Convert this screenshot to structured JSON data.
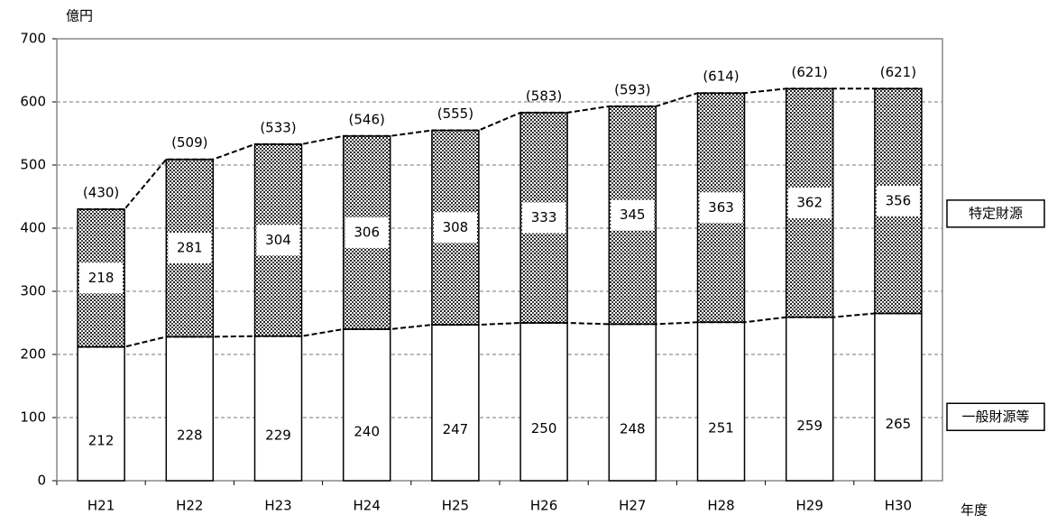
{
  "chart_data": {
    "type": "stacked-bar",
    "y_label": "億円",
    "x_label": "年度",
    "categories": [
      "H21",
      "H22",
      "H23",
      "H24",
      "H25",
      "H26",
      "H27",
      "H28",
      "H29",
      "H30"
    ],
    "series": [
      {
        "name": "一般財源等",
        "color": "#ffffff",
        "values": [
          212,
          228,
          229,
          240,
          247,
          250,
          248,
          251,
          259,
          265
        ]
      },
      {
        "name": "特定財源",
        "color": "#555555",
        "values": [
          218,
          281,
          304,
          306,
          308,
          333,
          345,
          363,
          362,
          356
        ]
      }
    ],
    "totals": {
      "values": [
        430,
        509,
        533,
        546,
        555,
        583,
        593,
        614,
        621,
        621
      ],
      "value_labels": [
        "(430)",
        "(509)",
        "(533)",
        "(546)",
        "(555)",
        "(583)",
        "(593)",
        "(614)",
        "(621)",
        "(621)"
      ]
    },
    "ylim": [
      0,
      700
    ],
    "yticks": [
      0,
      100,
      200,
      300,
      400,
      500,
      600,
      700
    ],
    "grid": true
  }
}
